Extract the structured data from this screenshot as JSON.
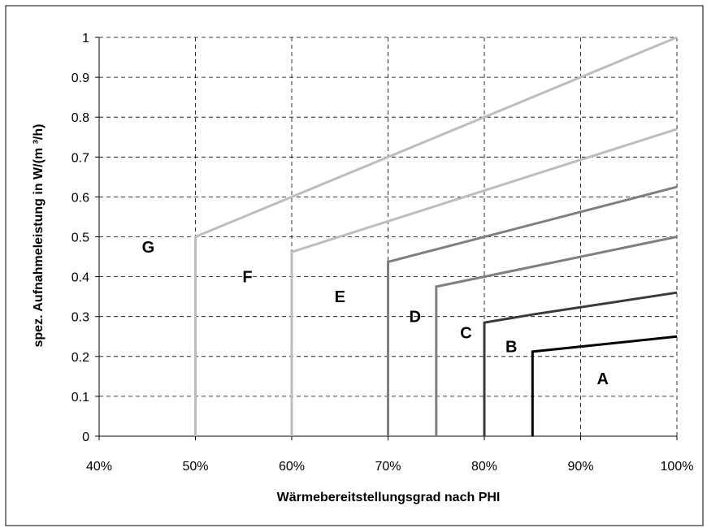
{
  "chart_data": {
    "type": "line",
    "title": "",
    "xlabel": "Wärmebereitstellungsgrad nach PHI",
    "ylabel": "spez. Aufnahmeleistung in W/(m ³/h)",
    "xlim": [
      0.4,
      1.0
    ],
    "ylim": [
      0,
      1
    ],
    "x_ticks": [
      0.4,
      0.5,
      0.6,
      0.7,
      0.8,
      0.9,
      1.0
    ],
    "x_tick_labels": [
      "40%",
      "50%",
      "60%",
      "70%",
      "80%",
      "90%",
      "100%"
    ],
    "y_ticks": [
      0,
      0.1,
      0.2,
      0.3,
      0.4,
      0.5,
      0.6,
      0.7,
      0.8,
      0.9,
      1
    ],
    "y_tick_labels": [
      "0",
      "0.1",
      "0.2",
      "0.3",
      "0.4",
      "0.5",
      "0.6",
      "0.7",
      "0.8",
      "0.9",
      "1"
    ],
    "grid": true,
    "legend": "none",
    "series": [
      {
        "color": "#000000",
        "x": [
          0.85,
          0.85,
          1.0
        ],
        "y": [
          0,
          0.212,
          0.25
        ]
      },
      {
        "color": "#3a3a3a",
        "x": [
          0.8,
          0.8,
          0.85,
          1.0
        ],
        "y": [
          0,
          0.285,
          0.305,
          0.36
        ]
      },
      {
        "color": "#7f7f7f",
        "x": [
          0.75,
          0.75,
          1.0
        ],
        "y": [
          0,
          0.375,
          0.5
        ]
      },
      {
        "color": "#7f7f7f",
        "x": [
          0.7,
          0.7,
          1.0
        ],
        "y": [
          0,
          0.437,
          0.625
        ]
      },
      {
        "color": "#bdbdbd",
        "x": [
          0.6,
          0.6,
          1.0
        ],
        "y": [
          0,
          0.462,
          0.77
        ]
      },
      {
        "color": "#bdbdbd",
        "x": [
          0.5,
          0.5,
          1.0
        ],
        "y": [
          0,
          0.5,
          1.0
        ]
      }
    ],
    "annotations": [
      {
        "text": "A",
        "x": 0.923,
        "y": 0.145
      },
      {
        "text": "B",
        "x": 0.828,
        "y": 0.225
      },
      {
        "text": "C",
        "x": 0.781,
        "y": 0.26
      },
      {
        "text": "D",
        "x": 0.728,
        "y": 0.3
      },
      {
        "text": "E",
        "x": 0.65,
        "y": 0.35
      },
      {
        "text": "F",
        "x": 0.554,
        "y": 0.4
      },
      {
        "text": "G",
        "x": 0.451,
        "y": 0.475
      }
    ]
  }
}
